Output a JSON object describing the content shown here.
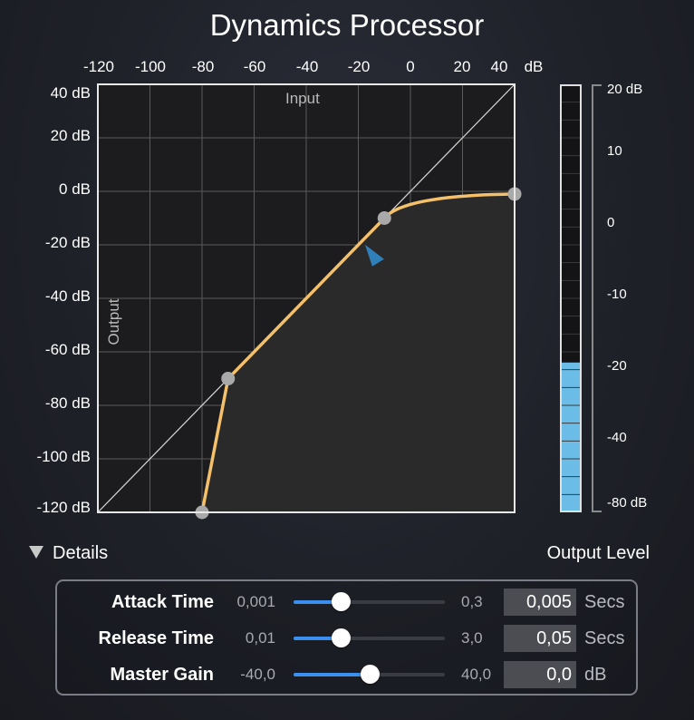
{
  "window": {
    "title": "Dynamics Processor"
  },
  "graph": {
    "input_label": "Input",
    "output_label": "Output",
    "x_ticks": [
      "-120",
      "-100",
      "-80",
      "-60",
      "-40",
      "-20",
      "0",
      "20",
      "40",
      "dB"
    ],
    "y_ticks": [
      "40 dB",
      "20 dB",
      "0 dB",
      "-20 dB",
      "-40 dB",
      "-60 dB",
      "-80 dB",
      "-100 dB",
      "-120 dB"
    ],
    "x_range": [
      -120,
      40
    ],
    "y_range": [
      -120,
      40
    ],
    "curve_points": [
      {
        "input": -80,
        "output": -120
      },
      {
        "input": -70,
        "output": -70
      },
      {
        "input": -10,
        "output": -10
      },
      {
        "input": 40,
        "output": -1
      }
    ],
    "level_marker": {
      "input": -15,
      "output": -24
    },
    "colors": {
      "curve": "#f4c06a",
      "fill": "#2a2a2a",
      "grid": "#5a5a5a",
      "handle": "#a9a9a9",
      "marker": "#2f7fb8"
    }
  },
  "meter": {
    "ticks": [
      "20 dB",
      "10",
      "0",
      "-10",
      "-20",
      "-40",
      "-80 dB"
    ],
    "level": 0.35,
    "fill_color": "#6bbde8"
  },
  "details": {
    "label": "Details",
    "expanded": true,
    "icon": "disclosure-triangle-icon"
  },
  "output_level_label": "Output Level",
  "controls": [
    {
      "id": "attack",
      "label": "Attack Time",
      "min": "0,001",
      "max": "0,3",
      "value": "0,005",
      "unit": "Secs",
      "position": 0.31
    },
    {
      "id": "release",
      "label": "Release Time",
      "min": "0,01",
      "max": "3,0",
      "value": "0,05",
      "unit": "Secs",
      "position": 0.31
    },
    {
      "id": "gain",
      "label": "Master Gain",
      "min": "-40,0",
      "max": "40,0",
      "value": "0,0",
      "unit": "dB",
      "position": 0.5
    }
  ]
}
